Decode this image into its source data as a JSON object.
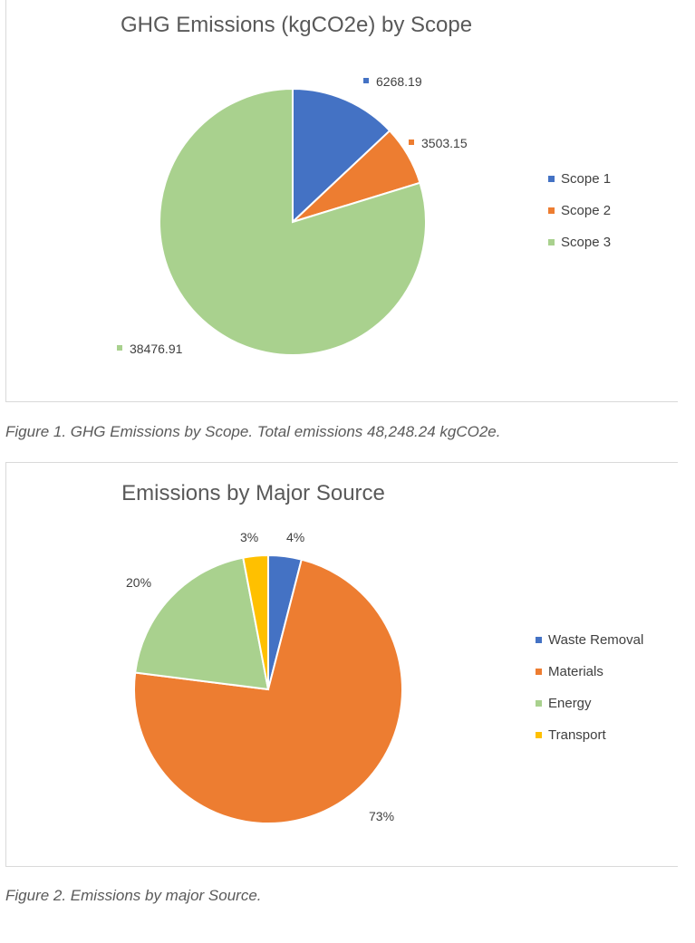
{
  "chart_data": [
    {
      "type": "pie",
      "title": "GHG Emissions (kgCO2e) by Scope",
      "categories": [
        "Scope 1",
        "Scope 2",
        "Scope 3"
      ],
      "values": [
        6268.19,
        3503.15,
        38476.91
      ],
      "data_labels": [
        "6268.19",
        "3503.15",
        "38476.91"
      ],
      "colors": [
        "#4472c4",
        "#ed7d31",
        "#a9d18e"
      ],
      "legend_position": "right",
      "caption": "Figure 1. GHG Emissions by Scope. Total emissions 48,248.24 kgCO2e."
    },
    {
      "type": "pie",
      "title": "Emissions by Major Source",
      "categories": [
        "Waste Removal",
        "Materials",
        "Energy",
        "Transport"
      ],
      "values": [
        4,
        73,
        20,
        3
      ],
      "data_labels": [
        "4%",
        "73%",
        "20%",
        "3%"
      ],
      "colors": [
        "#4472c4",
        "#ed7d31",
        "#a9d18e",
        "#ffc000"
      ],
      "legend_position": "right",
      "caption": "Figure 2. Emissions by major Source."
    }
  ]
}
